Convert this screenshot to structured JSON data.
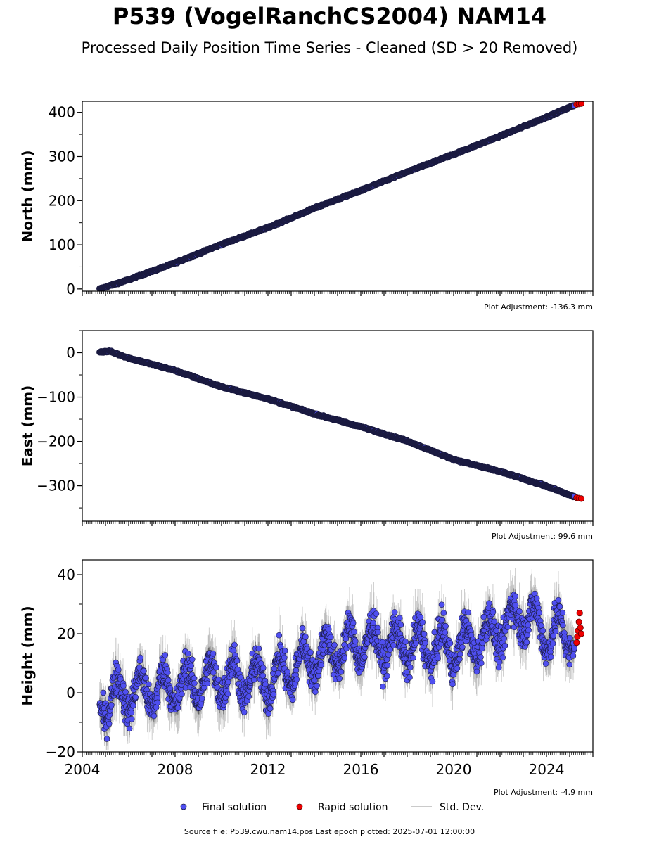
{
  "title": "P539 (VogelRanchCS2004) NAM14",
  "subtitle": "Processed Daily Position Time Series - Cleaned (SD > 20 Removed)",
  "footer": "Source file: P539.cwu.nam14.pos  Last epoch plotted: 2025-07-01 12:00:00",
  "colors": {
    "final": "#4f4ff0",
    "final_edge": "#1a1a40",
    "rapid": "#ee0000",
    "stddev": "#b8b8b8"
  },
  "legend": {
    "final": "Final solution",
    "rapid": "Rapid solution",
    "stddev": "Std. Dev.",
    "placement": "bottom-center"
  },
  "chart_data": [
    {
      "type": "scatter",
      "ylabel": "North (mm)",
      "xlim": [
        2004,
        2026
      ],
      "ylim": [
        -5,
        425
      ],
      "yticks": [
        0,
        100,
        200,
        300,
        400
      ],
      "adjustment": "Plot Adjustment: -136.3 mm",
      "grid": false,
      "series": [
        {
          "name": "Final solution",
          "x": [
            2004.75,
            2006,
            2008,
            2010,
            2012,
            2014,
            2016,
            2018,
            2020,
            2022,
            2024,
            2025.2
          ],
          "y": [
            0,
            21,
            59,
            101,
            139,
            183,
            223,
            265,
            305,
            346,
            389,
            416
          ]
        },
        {
          "name": "Rapid solution",
          "x": [
            2025.3,
            2025.4,
            2025.5
          ],
          "y": [
            418,
            419,
            420
          ]
        }
      ]
    },
    {
      "type": "scatter",
      "ylabel": "East (mm)",
      "xlim": [
        2004,
        2026
      ],
      "ylim": [
        -380,
        50
      ],
      "yticks": [
        0,
        -100,
        -200,
        -300
      ],
      "adjustment": "Plot Adjustment: 99.6 mm",
      "grid": false,
      "series": [
        {
          "name": "Final solution",
          "x": [
            2004.75,
            2005.2,
            2006,
            2008,
            2010,
            2012,
            2014,
            2016,
            2018,
            2020,
            2022,
            2024,
            2025.2
          ],
          "y": [
            2,
            3,
            -12,
            -40,
            -77,
            -104,
            -138,
            -167,
            -199,
            -241,
            -268,
            -301,
            -325
          ]
        },
        {
          "name": "Rapid solution",
          "x": [
            2025.3,
            2025.4,
            2025.5
          ],
          "y": [
            -327,
            -328,
            -329
          ]
        }
      ]
    },
    {
      "type": "scatter",
      "ylabel": "Height (mm)",
      "xlim": [
        2004,
        2026
      ],
      "ylim": [
        -20,
        45
      ],
      "yticks": [
        -20,
        0,
        20,
        40
      ],
      "xticks": [
        2004,
        2008,
        2012,
        2016,
        2020,
        2024
      ],
      "adjustment": "Plot Adjustment: -4.9 mm",
      "grid": false,
      "trend": [
        [
          2004.75,
          0
        ],
        [
          2025.2,
          21
        ]
      ],
      "seasonal_amplitude_mm": 7,
      "scatter_mm": 4,
      "series": [
        {
          "name": "Final solution",
          "x": [
            2004.75,
            2006,
            2008,
            2010,
            2012,
            2014,
            2016,
            2018,
            2020,
            2022,
            2023,
            2024,
            2025.2
          ],
          "y": [
            -3,
            0,
            2,
            5,
            4,
            12,
            17,
            16,
            15,
            21,
            27,
            20,
            20
          ]
        },
        {
          "name": "Rapid solution",
          "x": [
            2025.3,
            2025.33,
            2025.36,
            2025.4,
            2025.43,
            2025.46,
            2025.5
          ],
          "y": [
            17,
            19,
            21,
            24,
            27,
            22,
            20
          ]
        }
      ]
    }
  ]
}
